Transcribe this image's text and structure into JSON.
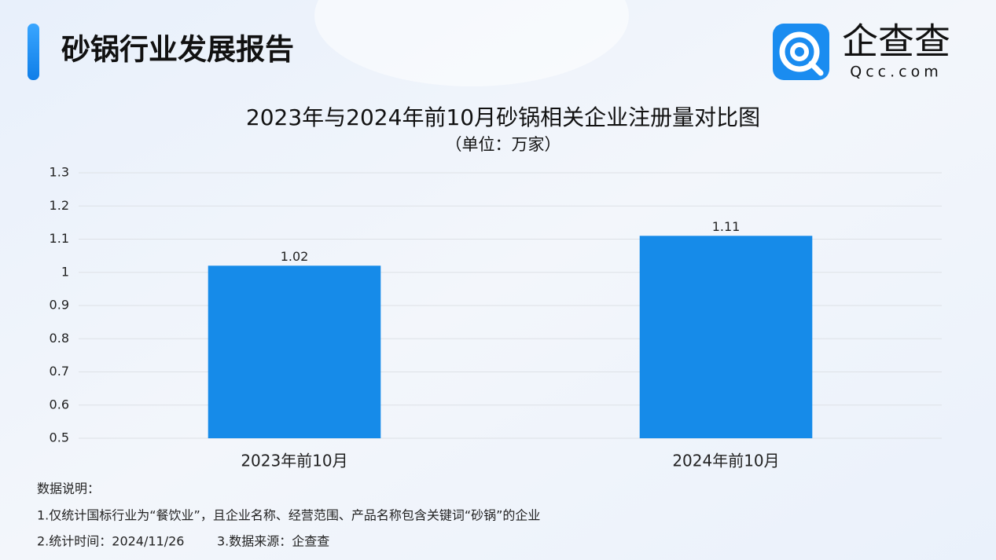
{
  "header": {
    "title": "砂锅行业发展报告"
  },
  "logo": {
    "name": "企查查",
    "domain": "Qcc.com"
  },
  "chart_data": {
    "type": "bar",
    "title": "2023年与2024年前10月砂锅相关企业注册量对比图",
    "subtitle": "（单位：万家）",
    "categories": [
      "2023年前10月",
      "2024年前10月"
    ],
    "values": [
      1.02,
      1.11
    ],
    "color": "#168be9",
    "ylim": [
      0.5,
      1.3
    ],
    "yticks": [
      0.5,
      0.6,
      0.7,
      0.8,
      0.9,
      1,
      1.1,
      1.2,
      1.3
    ],
    "grid": true
  },
  "notes": {
    "heading": "数据说明：",
    "items": [
      "1.仅统计国标行业为“餐饮业”，且企业名称、经营范围、产品名称包含关键词“砂锅”的企业",
      "2.统计时间：2024/11/26",
      "3.数据来源：企查查"
    ]
  }
}
